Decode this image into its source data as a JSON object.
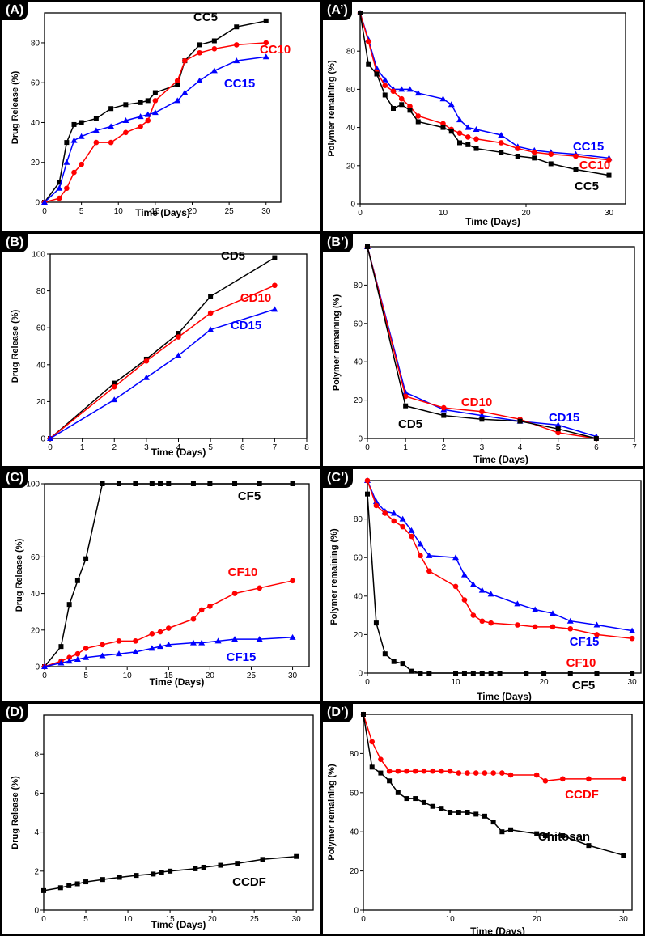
{
  "chart_data": [
    {
      "id": "A",
      "panel_label": "(A)",
      "type": "line",
      "xlabel": "Time (Days)",
      "ylabel": "Drug Release (%)",
      "xlim": [
        0,
        32
      ],
      "ylim": [
        0,
        95
      ],
      "xticks": [
        0,
        5,
        10,
        15,
        20,
        25,
        30
      ],
      "yticks": [
        0,
        20,
        40,
        60,
        80
      ],
      "series": [
        {
          "name": "CC5",
          "color": "#000000",
          "marker": "square",
          "x": [
            0,
            2,
            3,
            4,
            5,
            7,
            9,
            11,
            13,
            14,
            15,
            18,
            19,
            21,
            23,
            26,
            30
          ],
          "y": [
            0,
            10,
            30,
            39,
            40,
            42,
            47,
            49,
            50,
            51,
            55,
            59,
            71,
            79,
            81,
            88,
            91
          ]
        },
        {
          "name": "CC10",
          "color": "#ff0000",
          "marker": "circle",
          "x": [
            0,
            2,
            3,
            4,
            5,
            7,
            9,
            11,
            13,
            14,
            15,
            18,
            19,
            21,
            23,
            26,
            30
          ],
          "y": [
            0,
            2,
            7,
            15,
            19,
            30,
            30,
            35,
            38,
            41,
            51,
            61,
            71,
            75,
            77,
            79,
            80
          ]
        },
        {
          "name": "CC15",
          "color": "#0000ff",
          "marker": "triangle",
          "x": [
            0,
            2,
            3,
            4,
            5,
            7,
            9,
            11,
            13,
            14,
            15,
            18,
            19,
            21,
            23,
            26,
            30
          ],
          "y": [
            0,
            7,
            20,
            31,
            33,
            36,
            38,
            41,
            43,
            44,
            45,
            51,
            55,
            61,
            66,
            71,
            73
          ]
        }
      ]
    },
    {
      "id": "A2",
      "panel_label": "(A’)",
      "type": "line",
      "xlabel": "Time (Days)",
      "ylabel": "Polymer remaining (%)",
      "xlim": [
        0,
        32
      ],
      "ylim": [
        0,
        100
      ],
      "xticks": [
        0,
        10,
        20,
        30
      ],
      "yticks": [
        0,
        20,
        40,
        60,
        80
      ],
      "series": [
        {
          "name": "CC15",
          "color": "#0000ff",
          "marker": "triangle",
          "x": [
            0,
            1,
            2,
            3,
            4,
            5,
            6,
            7,
            10,
            11,
            12,
            13,
            14,
            17,
            19,
            21,
            23,
            26,
            30
          ],
          "y": [
            100,
            86,
            71,
            65,
            60,
            60,
            60,
            58,
            55,
            52,
            44,
            40,
            39,
            36,
            30,
            28,
            27,
            26,
            24
          ]
        },
        {
          "name": "CC10",
          "color": "#ff0000",
          "marker": "circle",
          "x": [
            0,
            1,
            2,
            3,
            4,
            5,
            6,
            7,
            10,
            11,
            12,
            13,
            14,
            17,
            19,
            21,
            23,
            26,
            30
          ],
          "y": [
            100,
            85,
            69,
            62,
            59,
            55,
            51,
            46,
            42,
            39,
            37,
            35,
            34,
            32,
            29,
            27,
            26,
            25,
            23
          ]
        },
        {
          "name": "CC5",
          "color": "#000000",
          "marker": "square",
          "x": [
            0,
            1,
            2,
            3,
            4,
            5,
            6,
            7,
            10,
            11,
            12,
            13,
            14,
            17,
            19,
            21,
            23,
            26,
            30
          ],
          "y": [
            100,
            73,
            68,
            57,
            50,
            52,
            49,
            43,
            40,
            38,
            32,
            31,
            29,
            27,
            25,
            24,
            21,
            18,
            15
          ]
        }
      ]
    },
    {
      "id": "B",
      "panel_label": "(B)",
      "type": "line",
      "xlabel": "Time (Days)",
      "ylabel": "Drug Release (%)",
      "xlim": [
        0,
        8
      ],
      "ylim": [
        0,
        100
      ],
      "xticks": [
        0,
        1,
        2,
        3,
        4,
        5,
        6,
        7,
        8
      ],
      "yticks": [
        0,
        20,
        40,
        60,
        80,
        100
      ],
      "series": [
        {
          "name": "CD5",
          "color": "#000000",
          "marker": "square",
          "x": [
            0,
            2,
            3,
            4,
            5,
            7
          ],
          "y": [
            0,
            30,
            43,
            57,
            77,
            98
          ]
        },
        {
          "name": "CD10",
          "color": "#ff0000",
          "marker": "circle",
          "x": [
            0,
            2,
            3,
            4,
            5,
            7
          ],
          "y": [
            0,
            28,
            42,
            55,
            68,
            83
          ]
        },
        {
          "name": "CD15",
          "color": "#0000ff",
          "marker": "triangle",
          "x": [
            0,
            2,
            3,
            4,
            5,
            7
          ],
          "y": [
            0,
            21,
            33,
            45,
            59,
            70
          ]
        }
      ]
    },
    {
      "id": "B2",
      "panel_label": "(B’)",
      "type": "line",
      "xlabel": "Time (Days)",
      "ylabel": "Polymer remaining (%)",
      "xlim": [
        0,
        7
      ],
      "ylim": [
        0,
        100
      ],
      "xticks": [
        0,
        1,
        2,
        3,
        4,
        5,
        6,
        7
      ],
      "yticks": [
        0,
        20,
        40,
        60,
        80
      ],
      "series": [
        {
          "name": "CD15",
          "color": "#0000ff",
          "marker": "triangle",
          "x": [
            0,
            1,
            2,
            3,
            4,
            5,
            6
          ],
          "y": [
            100,
            24,
            15,
            12,
            9,
            7,
            1
          ]
        },
        {
          "name": "CD10",
          "color": "#ff0000",
          "marker": "circle",
          "x": [
            0,
            1,
            2,
            3,
            4,
            5,
            6
          ],
          "y": [
            100,
            22,
            16,
            14,
            10,
            3,
            0
          ]
        },
        {
          "name": "CD5",
          "color": "#000000",
          "marker": "square",
          "x": [
            0,
            1,
            2,
            3,
            4,
            5,
            6
          ],
          "y": [
            100,
            17,
            12,
            10,
            9,
            5,
            0
          ]
        }
      ]
    },
    {
      "id": "C",
      "panel_label": "(C)",
      "type": "line",
      "xlabel": "Time (Days)",
      "ylabel": "Drug Release (%)",
      "xlim": [
        0,
        32
      ],
      "ylim": [
        0,
        100
      ],
      "xticks": [
        0,
        5,
        10,
        15,
        20,
        25,
        30
      ],
      "yticks": [
        0,
        20,
        40,
        60,
        100
      ],
      "series": [
        {
          "name": "CF5",
          "color": "#000000",
          "marker": "square",
          "x": [
            0,
            2,
            3,
            4,
            5,
            7,
            9,
            11,
            13,
            14,
            15,
            18,
            20,
            23,
            26,
            30
          ],
          "y": [
            0,
            11,
            34,
            47,
            59,
            100,
            100,
            100,
            100,
            100,
            100,
            100,
            100,
            100,
            100,
            100
          ]
        },
        {
          "name": "CF10",
          "color": "#ff0000",
          "marker": "circle",
          "x": [
            0,
            2,
            3,
            4,
            5,
            7,
            9,
            11,
            13,
            14,
            15,
            18,
            19,
            20,
            23,
            26,
            30
          ],
          "y": [
            0,
            3,
            5,
            7,
            10,
            12,
            14,
            14,
            18,
            19,
            21,
            26,
            31,
            33,
            40,
            43,
            47
          ]
        },
        {
          "name": "CF15",
          "color": "#0000ff",
          "marker": "triangle",
          "x": [
            0,
            2,
            3,
            4,
            5,
            7,
            9,
            11,
            13,
            14,
            15,
            18,
            19,
            21,
            23,
            26,
            30
          ],
          "y": [
            0,
            2,
            3,
            4,
            5,
            6,
            7,
            8,
            10,
            11,
            12,
            13,
            13,
            14,
            15,
            15,
            16
          ]
        }
      ]
    },
    {
      "id": "C2",
      "panel_label": "(C’)",
      "type": "line",
      "xlabel": "Time (Days)",
      "ylabel": "Polymer remaining (%)",
      "xlim": [
        0,
        31
      ],
      "ylim": [
        0,
        100
      ],
      "xticks": [
        0,
        10,
        20,
        30
      ],
      "yticks": [
        0,
        20,
        40,
        60,
        80
      ],
      "series": [
        {
          "name": "CF15",
          "color": "#0000ff",
          "marker": "triangle",
          "x": [
            0,
            1,
            2,
            3,
            4,
            5,
            6,
            7,
            10,
            11,
            12,
            13,
            14,
            17,
            19,
            21,
            23,
            26,
            30
          ],
          "y": [
            100,
            89,
            84,
            83,
            80,
            74,
            67,
            61,
            60,
            51,
            46,
            43,
            41,
            36,
            33,
            31,
            27,
            25,
            22
          ]
        },
        {
          "name": "CF10",
          "color": "#ff0000",
          "marker": "circle",
          "x": [
            0,
            1,
            2,
            3,
            4,
            5,
            6,
            7,
            10,
            11,
            12,
            13,
            14,
            17,
            19,
            21,
            23,
            26,
            30
          ],
          "y": [
            100,
            87,
            83,
            79,
            76,
            71,
            61,
            53,
            45,
            38,
            30,
            27,
            26,
            25,
            24,
            24,
            23,
            20,
            18
          ]
        },
        {
          "name": "CF5",
          "color": "#000000",
          "marker": "square",
          "x": [
            0,
            1,
            2,
            3,
            4,
            5,
            6,
            7,
            10,
            11,
            12,
            13,
            14,
            15,
            18,
            20,
            23,
            26,
            30
          ],
          "y": [
            93,
            26,
            10,
            6,
            5,
            1,
            0,
            0,
            0,
            0,
            0,
            0,
            0,
            0,
            0,
            0,
            0,
            0,
            0
          ]
        }
      ]
    },
    {
      "id": "D",
      "panel_label": "(D)",
      "type": "line",
      "xlabel": "Time (Days)",
      "ylabel": "Drug Release (%)",
      "xlim": [
        0,
        32
      ],
      "ylim": [
        0,
        10
      ],
      "xticks": [
        0,
        5,
        10,
        15,
        20,
        25,
        30
      ],
      "yticks": [
        0,
        2,
        4,
        6,
        8
      ],
      "series": [
        {
          "name": "CCDF",
          "color": "#000000",
          "marker": "square",
          "x": [
            0,
            2,
            3,
            4,
            5,
            7,
            9,
            11,
            13,
            14,
            15,
            18,
            19,
            21,
            23,
            26,
            30
          ],
          "y": [
            1.0,
            1.15,
            1.25,
            1.35,
            1.45,
            1.57,
            1.68,
            1.78,
            1.85,
            1.95,
            2.0,
            2.12,
            2.2,
            2.3,
            2.4,
            2.6,
            2.75
          ]
        }
      ]
    },
    {
      "id": "D2",
      "panel_label": "(D’)",
      "type": "line",
      "xlabel": "Time (Days)",
      "ylabel": "Polymer remaining (%)",
      "xlim": [
        0,
        31
      ],
      "ylim": [
        0,
        100
      ],
      "xticks": [
        0,
        10,
        20,
        30
      ],
      "yticks": [
        0,
        20,
        40,
        60,
        80
      ],
      "series": [
        {
          "name": "CCDF",
          "color": "#ff0000",
          "marker": "circle",
          "x": [
            0,
            1,
            2,
            3,
            4,
            5,
            6,
            7,
            8,
            9,
            10,
            11,
            12,
            13,
            14,
            15,
            16,
            17,
            20,
            21,
            23,
            26,
            30
          ],
          "y": [
            100,
            86,
            77,
            71,
            71,
            71,
            71,
            71,
            71,
            71,
            71,
            70,
            70,
            70,
            70,
            70,
            70,
            69,
            69,
            66,
            67,
            67,
            67
          ]
        },
        {
          "name": "Chitosan",
          "color": "#000000",
          "marker": "square",
          "x": [
            0,
            1,
            2,
            3,
            4,
            5,
            6,
            7,
            8,
            9,
            10,
            11,
            12,
            13,
            14,
            15,
            16,
            17,
            20,
            21,
            23,
            26,
            30
          ],
          "y": [
            100,
            73,
            70,
            66,
            60,
            57,
            57,
            55,
            53,
            52,
            50,
            50,
            50,
            49,
            48,
            45,
            40,
            41,
            39,
            38,
            38,
            33,
            28
          ]
        }
      ]
    }
  ]
}
